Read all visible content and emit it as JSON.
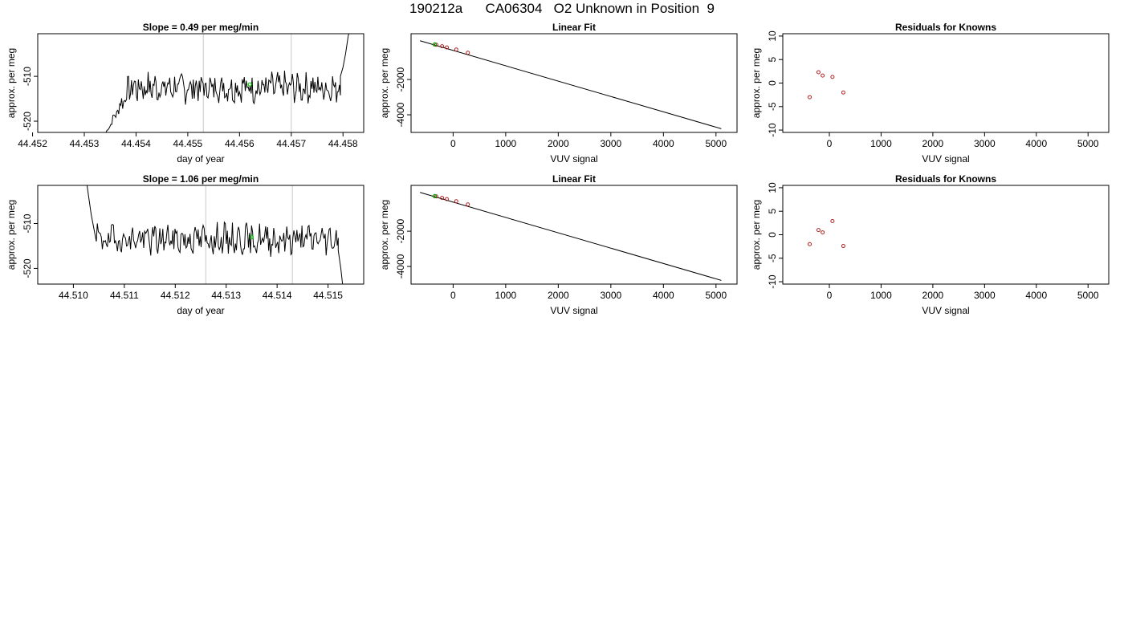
{
  "main_title": "190212a      CA06304   O2 Unknown in Position  9",
  "chart_data": [
    {
      "id": "trace-1",
      "type": "line",
      "title": "Slope =  0.49  per meg/min",
      "xlabel": "day of year",
      "ylabel": "approx. per meg",
      "xlim": [
        44.4521,
        44.4584
      ],
      "ylim": [
        -522.5,
        -500.5
      ],
      "xticks": [
        44.452,
        44.453,
        44.454,
        44.455,
        44.456,
        44.457,
        44.458
      ],
      "xtick_labels": [
        "44.452",
        "44.453",
        "44.454",
        "44.455",
        "44.456",
        "44.457",
        "44.458"
      ],
      "yticks": [
        -510,
        -520
      ],
      "ytick_labels": [
        "-510",
        "-520"
      ],
      "vlines": [
        44.4553,
        44.457
      ],
      "trace_start": [
        44.4534,
        -523.0
      ],
      "trace_end_rise": [
        [
          44.45795,
          -510.0
        ],
        [
          44.458,
          -508.0
        ],
        [
          44.45805,
          -505.0
        ],
        [
          44.4581,
          -501.0
        ],
        [
          44.45815,
          -499.0
        ]
      ],
      "trace_baseline": -512.5,
      "trace_seed": 7,
      "highlight_point": [
        44.4562,
        -511.8
      ],
      "highlight_color": "#00cc00"
    },
    {
      "id": "fit-1",
      "type": "scatter",
      "title": "Linear Fit",
      "xlabel": "VUV signal",
      "ylabel": "approx. per meg",
      "xlim": [
        -800,
        5400
      ],
      "ylim": [
        -5000,
        600
      ],
      "xticks": [
        0,
        1000,
        2000,
        3000,
        4000,
        5000
      ],
      "xtick_labels": [
        "0",
        "1000",
        "2000",
        "3000",
        "4000",
        "5000"
      ],
      "yticks": [
        -2000,
        -4000
      ],
      "ytick_labels": [
        "-2000",
        "-4000"
      ],
      "fit_line": [
        [
          -630,
          200
        ],
        [
          5100,
          -4790
        ]
      ],
      "points": [
        [
          -320,
          -25
        ],
        [
          -210,
          -110
        ],
        [
          -120,
          -180
        ],
        [
          60,
          -300
        ],
        [
          280,
          -480
        ]
      ],
      "highlight_point": [
        -350,
        -8
      ],
      "point_color": "#b22222",
      "highlight_color": "#00aa00"
    },
    {
      "id": "resid-1",
      "type": "scatter",
      "title": "Residuals for Knowns",
      "xlabel": "VUV signal",
      "ylabel": "approx. per meg",
      "xlim": [
        -900,
        5400
      ],
      "ylim": [
        -10.5,
        10.5
      ],
      "xticks": [
        0,
        1000,
        2000,
        3000,
        4000,
        5000
      ],
      "xtick_labels": [
        "0",
        "1000",
        "2000",
        "3000",
        "4000",
        "5000"
      ],
      "yticks": [
        10,
        5,
        0,
        -5,
        -10
      ],
      "ytick_labels": [
        "10",
        "5",
        "0",
        "-5",
        "-10"
      ],
      "points": [
        [
          -380,
          -3.0
        ],
        [
          -210,
          2.3
        ],
        [
          -130,
          1.6
        ],
        [
          60,
          1.3
        ],
        [
          270,
          -2.0
        ]
      ],
      "point_color": "#b22222"
    },
    {
      "id": "trace-2",
      "type": "line",
      "title": "Slope =  1.06  per meg/min",
      "xlabel": "day of year",
      "ylabel": "approx. per meg",
      "xlim": [
        44.5093,
        44.5157
      ],
      "ylim": [
        -523.5,
        -501.5
      ],
      "xticks": [
        44.51,
        44.511,
        44.512,
        44.513,
        44.514,
        44.515
      ],
      "xtick_labels": [
        "44.510",
        "44.511",
        "44.512",
        "44.513",
        "44.514",
        "44.515"
      ],
      "yticks": [
        -510,
        -520
      ],
      "ytick_labels": [
        "-510",
        "-520"
      ],
      "vlines": [
        44.5126,
        44.5143
      ],
      "trace_start_drop": [
        [
          44.51025,
          -500.0
        ],
        [
          44.5103,
          -504.0
        ],
        [
          44.51035,
          -508.0
        ],
        [
          44.5104,
          -511.0
        ],
        [
          44.51045,
          -514.0
        ]
      ],
      "trace_end_drop": [
        [
          44.5152,
          -516.0
        ],
        [
          44.51525,
          -520.0
        ],
        [
          44.5153,
          -525.0
        ]
      ],
      "trace_baseline": -513.5,
      "trace_seed": 19,
      "highlight_point": [
        44.5135,
        -513.0
      ],
      "highlight_color": "#00cc00"
    },
    {
      "id": "fit-2",
      "type": "scatter",
      "title": "Linear Fit",
      "xlabel": "VUV signal",
      "ylabel": "approx. per meg",
      "xlim": [
        -800,
        5400
      ],
      "ylim": [
        -5000,
        600
      ],
      "xticks": [
        0,
        1000,
        2000,
        3000,
        4000,
        5000
      ],
      "xtick_labels": [
        "0",
        "1000",
        "2000",
        "3000",
        "4000",
        "5000"
      ],
      "yticks": [
        -2000,
        -4000
      ],
      "ytick_labels": [
        "-2000",
        "-4000"
      ],
      "fit_line": [
        [
          -630,
          200
        ],
        [
          5100,
          -4790
        ]
      ],
      "points": [
        [
          -320,
          -25
        ],
        [
          -210,
          -110
        ],
        [
          -120,
          -180
        ],
        [
          60,
          -300
        ],
        [
          280,
          -480
        ]
      ],
      "highlight_point": [
        -350,
        -8
      ],
      "point_color": "#b22222",
      "highlight_color": "#00aa00"
    },
    {
      "id": "resid-2",
      "type": "scatter",
      "title": "Residuals for Knowns",
      "xlabel": "VUV signal",
      "ylabel": "approx. per meg",
      "xlim": [
        -900,
        5400
      ],
      "ylim": [
        -10.5,
        10.5
      ],
      "xticks": [
        0,
        1000,
        2000,
        3000,
        4000,
        5000
      ],
      "xtick_labels": [
        "0",
        "1000",
        "2000",
        "3000",
        "4000",
        "5000"
      ],
      "yticks": [
        10,
        5,
        0,
        -5,
        -10
      ],
      "ytick_labels": [
        "10",
        "5",
        "0",
        "-5",
        "-10"
      ],
      "points": [
        [
          -380,
          -2.0
        ],
        [
          -210,
          1.0
        ],
        [
          -130,
          0.5
        ],
        [
          60,
          2.9
        ],
        [
          270,
          -2.4
        ]
      ],
      "point_color": "#b22222"
    }
  ]
}
